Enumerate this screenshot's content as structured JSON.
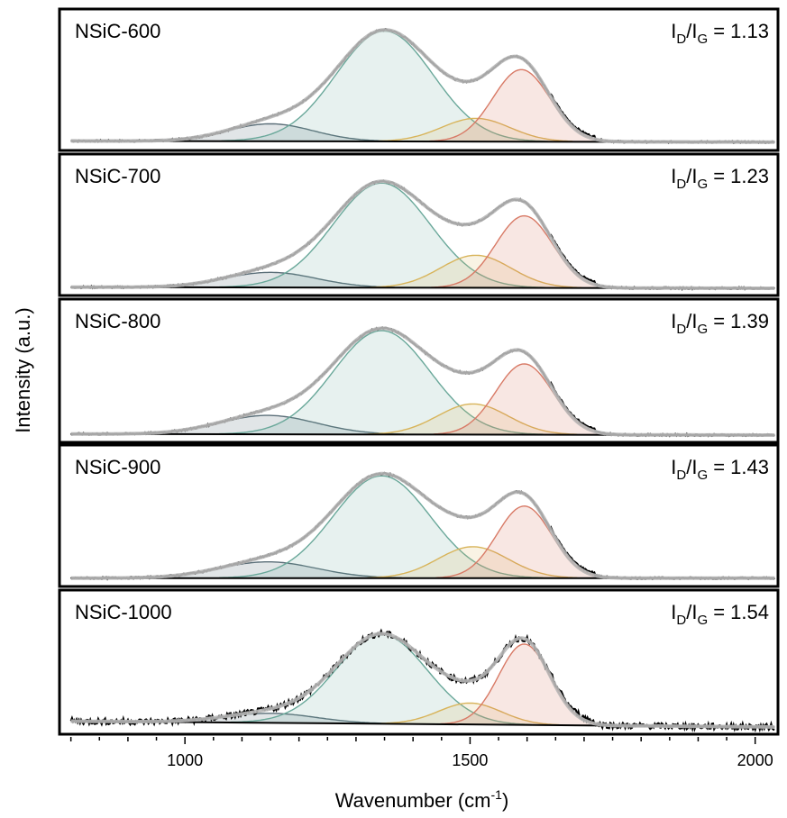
{
  "chart_data": {
    "type": "line",
    "xlabel": "Wavenumber (cm",
    "xlabel_sup": "-1",
    "xlabel_close": ")",
    "ylabel": "Intensity (a.u.)",
    "xlim": [
      780,
      2040
    ],
    "xticks": [
      1000,
      1500,
      2000
    ],
    "xtick_labels": [
      "1000",
      "1500",
      "2000"
    ],
    "grid": false,
    "legend": "none",
    "component_colors": {
      "band_1150": "#5a6e78",
      "D": "#6aa89a",
      "D3": "#d8b45a",
      "G": "#d87a66",
      "envelope": "#b8b8b8",
      "data": "#000000"
    },
    "panels": [
      {
        "label": "NSiC-600",
        "ratio_prefix": "I",
        "ratio_sub1": "D",
        "ratio_mid": "/I",
        "ratio_sub2": "G",
        "ratio_value": " = 1.13",
        "ratio": 1.13,
        "baseline": [
          0.02,
          0.01
        ],
        "components": [
          {
            "name": "band_1150",
            "center": 1150,
            "width": 75,
            "height": 0.15
          },
          {
            "name": "D",
            "center": 1350,
            "width": 85,
            "height": 0.95
          },
          {
            "name": "D3",
            "center": 1510,
            "width": 60,
            "height": 0.2
          },
          {
            "name": "G",
            "center": 1590,
            "width": 50,
            "height": 0.62
          }
        ]
      },
      {
        "label": "NSiC-700",
        "ratio_prefix": "I",
        "ratio_sub1": "D",
        "ratio_mid": "/I",
        "ratio_sub2": "G",
        "ratio_value": " = 1.23",
        "ratio": 1.23,
        "baseline": [
          0.01,
          0.0
        ],
        "components": [
          {
            "name": "band_1150",
            "center": 1150,
            "width": 80,
            "height": 0.13
          },
          {
            "name": "D",
            "center": 1345,
            "width": 85,
            "height": 0.9
          },
          {
            "name": "D3",
            "center": 1510,
            "width": 62,
            "height": 0.28
          },
          {
            "name": "G",
            "center": 1595,
            "width": 50,
            "height": 0.62
          }
        ]
      },
      {
        "label": "NSiC-800",
        "ratio_prefix": "I",
        "ratio_sub1": "D",
        "ratio_mid": "/I",
        "ratio_sub2": "G",
        "ratio_value": " = 1.39",
        "ratio": 1.39,
        "baseline": [
          0.01,
          0.0
        ],
        "components": [
          {
            "name": "band_1150",
            "center": 1145,
            "width": 85,
            "height": 0.16
          },
          {
            "name": "D",
            "center": 1345,
            "width": 85,
            "height": 0.88
          },
          {
            "name": "D3",
            "center": 1505,
            "width": 62,
            "height": 0.26
          },
          {
            "name": "G",
            "center": 1595,
            "width": 50,
            "height": 0.6
          }
        ]
      },
      {
        "label": "NSiC-900",
        "ratio_prefix": "I",
        "ratio_sub1": "D",
        "ratio_mid": "/I",
        "ratio_sub2": "G",
        "ratio_value": " = 1.43",
        "ratio": 1.43,
        "baseline": [
          0.01,
          0.01
        ],
        "components": [
          {
            "name": "band_1150",
            "center": 1145,
            "width": 85,
            "height": 0.14
          },
          {
            "name": "D",
            "center": 1345,
            "width": 85,
            "height": 0.88
          },
          {
            "name": "D3",
            "center": 1505,
            "width": 62,
            "height": 0.27
          },
          {
            "name": "G",
            "center": 1595,
            "width": 48,
            "height": 0.62
          }
        ]
      },
      {
        "label": "NSiC-1000",
        "ratio_prefix": "I",
        "ratio_sub1": "D",
        "ratio_mid": "/I",
        "ratio_sub2": "G",
        "ratio_value": " = 1.54",
        "ratio": 1.54,
        "baseline": [
          0.05,
          0.0
        ],
        "components": [
          {
            "name": "band_1150",
            "center": 1150,
            "width": 80,
            "height": 0.08
          },
          {
            "name": "D",
            "center": 1345,
            "width": 80,
            "height": 0.75
          },
          {
            "name": "D3",
            "center": 1500,
            "width": 55,
            "height": 0.18
          },
          {
            "name": "G",
            "center": 1595,
            "width": 45,
            "height": 0.68
          }
        ]
      }
    ]
  }
}
